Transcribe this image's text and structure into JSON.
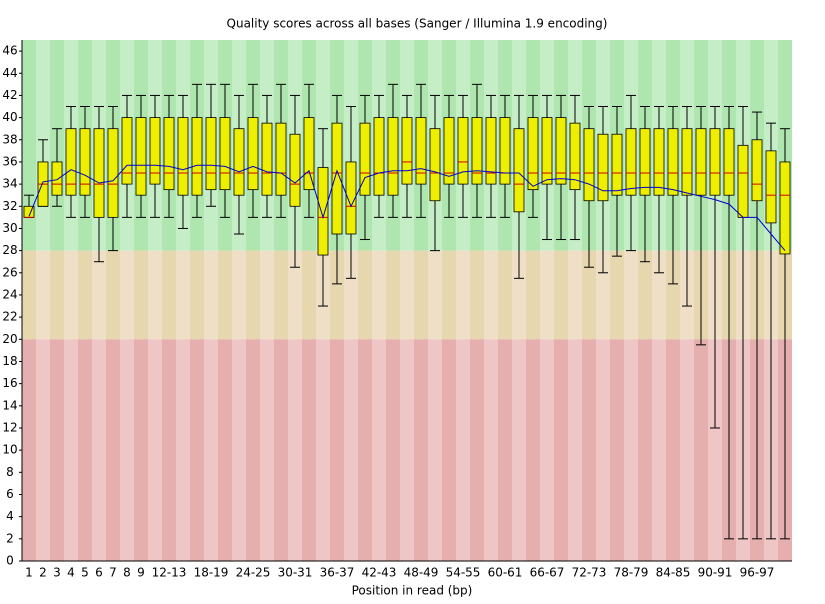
{
  "chart_data": {
    "type": "box",
    "title": "Quality scores across all bases (Sanger / Illumina 1.9 encoding)",
    "x_label": "Position in read (bp)",
    "categories": [
      "1",
      "2",
      "3",
      "4",
      "5",
      "6",
      "7",
      "8",
      "9",
      null,
      "12-13",
      null,
      null,
      "18-19",
      null,
      null,
      "24-25",
      null,
      null,
      "30-31",
      null,
      null,
      "36-37",
      null,
      null,
      "42-43",
      null,
      null,
      "48-49",
      null,
      null,
      "54-55",
      null,
      null,
      "60-61",
      null,
      null,
      "66-67",
      null,
      null,
      "72-73",
      null,
      null,
      "78-79",
      null,
      null,
      "84-85",
      null,
      null,
      "90-91",
      null,
      null,
      "96-97",
      null,
      null
    ],
    "whisker_low": [
      31,
      32,
      32,
      31,
      31,
      27,
      28,
      31,
      31,
      31,
      31,
      30,
      31,
      32,
      31,
      29.5,
      31,
      31,
      31,
      26.5,
      31,
      23,
      25,
      25.5,
      29,
      31,
      31,
      31,
      31,
      28,
      31,
      31,
      31,
      31,
      31,
      25.5,
      31,
      29,
      29,
      29,
      26.5,
      26,
      27.5,
      28,
      27,
      26,
      25,
      23,
      19.5,
      12,
      2,
      2,
      2,
      2,
      2
    ],
    "q1": [
      31,
      32,
      33,
      33,
      33,
      31,
      31,
      34,
      33,
      34,
      33.5,
      33,
      33,
      33.5,
      33.5,
      33,
      33.5,
      33,
      33,
      32,
      33.5,
      27.6,
      29.5,
      29.5,
      33,
      33,
      33,
      34,
      34,
      32.5,
      34,
      34,
      34,
      34,
      34,
      31.5,
      33.5,
      34,
      34,
      33.5,
      32.5,
      32.5,
      33,
      33,
      33,
      33,
      33,
      33,
      33,
      33,
      33,
      31,
      32.5,
      30.5,
      27.7
    ],
    "median": [
      31,
      34,
      34,
      34,
      34,
      34,
      34,
      35,
      35,
      35,
      35,
      35,
      35,
      35,
      35,
      35,
      35,
      35,
      35,
      34,
      35,
      31,
      35,
      32,
      35,
      35,
      35,
      36,
      35,
      35,
      35,
      36,
      35,
      35,
      35,
      34,
      35,
      35,
      35,
      35,
      35,
      35,
      35,
      35,
      35,
      35,
      35,
      35,
      35,
      35,
      35,
      35,
      34,
      33,
      33
    ],
    "q3": [
      32,
      36,
      36,
      39,
      39,
      39,
      39,
      40,
      40,
      40,
      40,
      40,
      40,
      40,
      40,
      39,
      40,
      39.5,
      39.5,
      38.5,
      40,
      35.5,
      39.5,
      36,
      39.5,
      40,
      40,
      40,
      40,
      39,
      40,
      40,
      40,
      40,
      40,
      39,
      40,
      40,
      40,
      39.5,
      39,
      38.5,
      38.5,
      39,
      39,
      39,
      39,
      39,
      39,
      39,
      39,
      37.5,
      38,
      37,
      36
    ],
    "whisker_high": [
      33,
      38,
      39,
      41,
      41,
      41,
      41,
      42,
      42,
      42,
      42,
      42,
      43,
      43,
      43,
      42,
      43,
      42,
      43,
      42,
      43,
      39,
      42,
      41,
      42,
      42,
      43,
      42,
      43,
      42,
      42,
      42,
      43,
      42,
      42,
      42,
      42,
      42,
      42,
      42,
      41,
      41,
      41,
      42,
      41,
      41,
      41,
      41,
      41,
      41,
      41,
      41,
      40.5,
      39.5,
      39
    ],
    "mean": [
      31.1,
      34.2,
      34.4,
      35.3,
      34.8,
      34.1,
      34.3,
      35.7,
      35.7,
      35.7,
      35.6,
      35.3,
      35.7,
      35.7,
      35.6,
      35.1,
      35.6,
      35.1,
      35.0,
      34.1,
      35.2,
      31.0,
      35.2,
      32.0,
      34.6,
      35.0,
      35.2,
      35.2,
      35.4,
      35.1,
      34.7,
      35.1,
      35.2,
      35.1,
      35.0,
      35.0,
      33.8,
      34.4,
      34.5,
      34.4,
      34.0,
      33.4,
      33.4,
      33.6,
      33.7,
      33.7,
      33.5,
      33.2,
      32.9,
      32.6,
      32.2,
      31.0,
      31.0,
      29.5,
      28.0
    ],
    "box_color": "#eeee00",
    "median_color": "#cc0000",
    "mean_color": "#0000cc",
    "bands": [
      {
        "from": 28,
        "to": 47,
        "colors": [
          "#afe6af",
          "#c6eec6"
        ]
      },
      {
        "from": 20,
        "to": 28,
        "colors": [
          "#e6d7af",
          "#eedfc6"
        ]
      },
      {
        "from": 0,
        "to": 20,
        "colors": [
          "#e6afaf",
          "#eec6c6"
        ]
      }
    ],
    "ylim": [
      0,
      47
    ],
    "yticks": [
      0,
      2,
      4,
      6,
      8,
      10,
      12,
      14,
      16,
      18,
      20,
      22,
      24,
      26,
      28,
      30,
      32,
      34,
      36,
      38,
      40,
      42,
      44,
      46
    ]
  }
}
